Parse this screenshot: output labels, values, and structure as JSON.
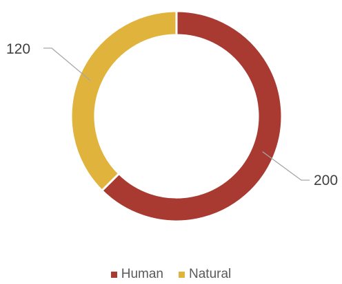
{
  "chart_data": {
    "type": "pie",
    "donut": true,
    "categories": [
      "Human",
      "Natural"
    ],
    "values": [
      200,
      120
    ],
    "colors": [
      "#A93A32",
      "#E0B43C"
    ],
    "data_labels": [
      "200",
      "120"
    ],
    "title": "",
    "legend_position": "bottom"
  }
}
